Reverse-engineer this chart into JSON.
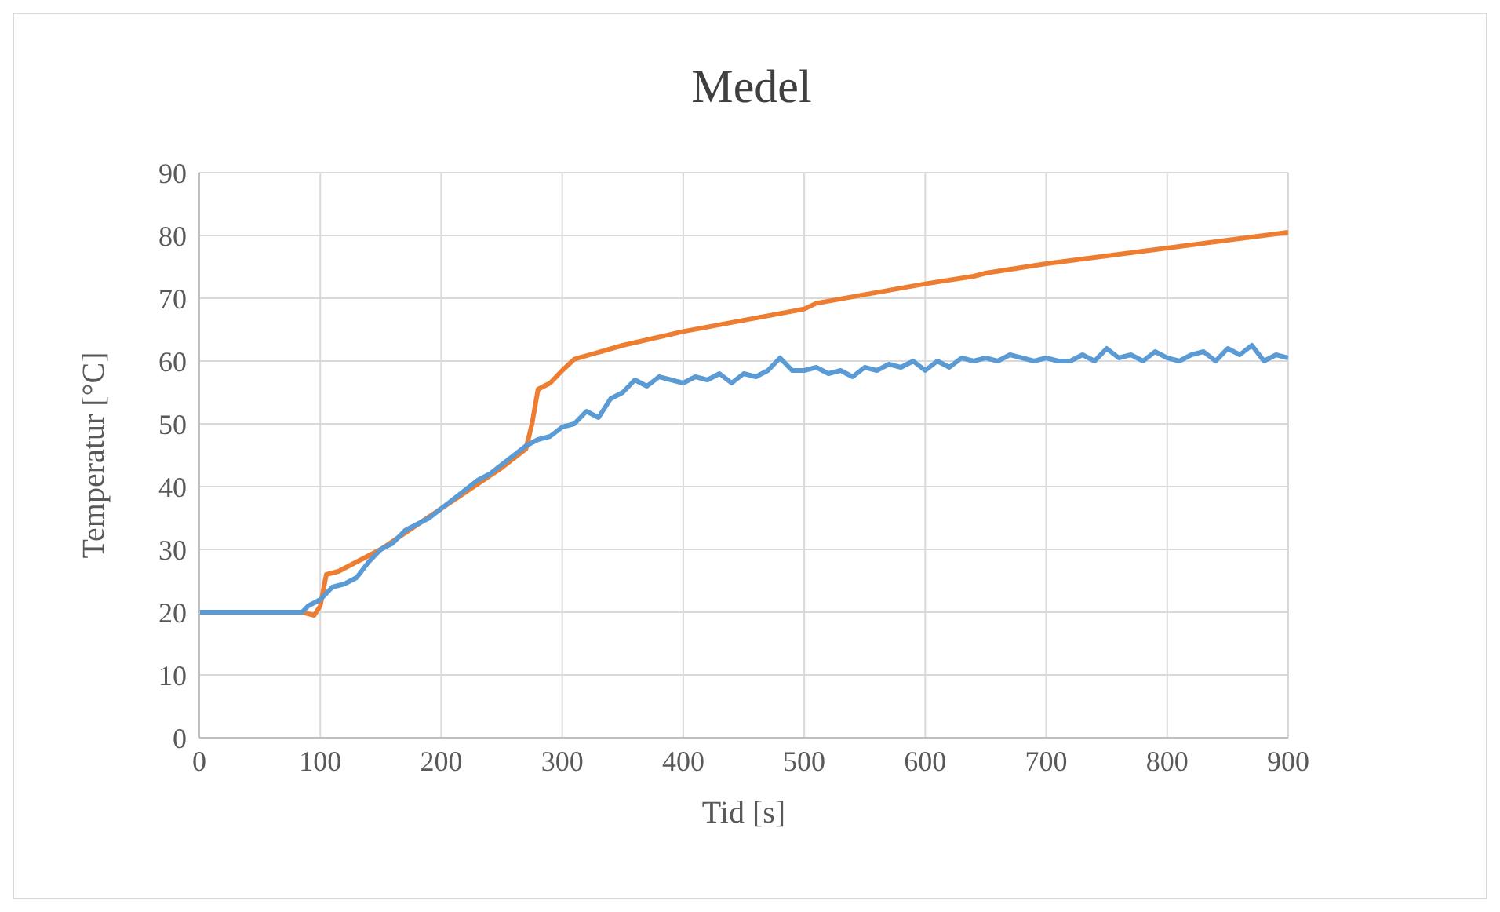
{
  "chart_data": {
    "type": "line",
    "title": "Medel",
    "xlabel": "Tid [s]",
    "ylabel": "Temperatur [°C]",
    "xlim": [
      0,
      900
    ],
    "xticks": [
      0,
      100,
      200,
      300,
      400,
      500,
      600,
      700,
      800,
      900
    ],
    "ylim": [
      0,
      90
    ],
    "yticks": [
      0,
      10,
      20,
      30,
      40,
      50,
      60,
      70,
      80,
      90
    ],
    "grid": true,
    "legend": false,
    "marker": "none",
    "line_style": "solid",
    "series": [
      {
        "color": "#ed7d31",
        "x": [
          0,
          85,
          95,
          100,
          105,
          115,
          150,
          200,
          250,
          270,
          275,
          280,
          290,
          300,
          310,
          350,
          400,
          500,
          510,
          600,
          640,
          650,
          700,
          800,
          900
        ],
        "values": [
          20,
          20,
          19.5,
          21,
          26,
          26.5,
          30,
          36.5,
          43,
          46,
          50,
          55.5,
          56.5,
          58.5,
          60.3,
          62.5,
          64.7,
          68.3,
          69.2,
          72.3,
          73.5,
          74,
          75.5,
          78,
          80.5
        ]
      },
      {
        "color": "#5b9bd5",
        "x": [
          0,
          85,
          90,
          100,
          110,
          120,
          130,
          140,
          150,
          160,
          170,
          180,
          190,
          200,
          210,
          220,
          230,
          240,
          250,
          260,
          270,
          280,
          290,
          300,
          310,
          320,
          330,
          340,
          350,
          360,
          370,
          380,
          390,
          400,
          410,
          420,
          430,
          440,
          450,
          460,
          470,
          480,
          490,
          500,
          510,
          520,
          530,
          540,
          550,
          560,
          570,
          580,
          590,
          600,
          610,
          620,
          630,
          640,
          650,
          660,
          670,
          680,
          690,
          700,
          710,
          720,
          730,
          740,
          750,
          760,
          770,
          780,
          790,
          800,
          810,
          820,
          830,
          840,
          850,
          860,
          870,
          880,
          890,
          900
        ],
        "values": [
          20,
          20,
          21,
          22,
          24,
          24.5,
          25.5,
          28,
          30,
          31,
          33,
          34,
          35,
          36.5,
          38,
          39.5,
          41,
          42,
          43.5,
          45,
          46.5,
          47.5,
          48,
          49.5,
          50,
          52,
          51,
          54,
          55,
          57,
          56,
          57.5,
          57,
          56.5,
          57.5,
          57,
          58,
          56.5,
          58,
          57.5,
          58.5,
          60.5,
          58.5,
          58.5,
          59,
          58,
          58.5,
          57.5,
          59,
          58.5,
          59.5,
          59,
          60,
          58.5,
          60,
          59,
          60.5,
          60,
          60.5,
          60,
          61,
          60.5,
          60,
          60.5,
          60,
          60,
          61,
          60,
          62,
          60.5,
          61,
          60,
          61.5,
          60.5,
          60,
          61,
          61.5,
          60,
          62,
          61,
          62.5,
          60,
          61,
          60.5
        ]
      }
    ]
  }
}
